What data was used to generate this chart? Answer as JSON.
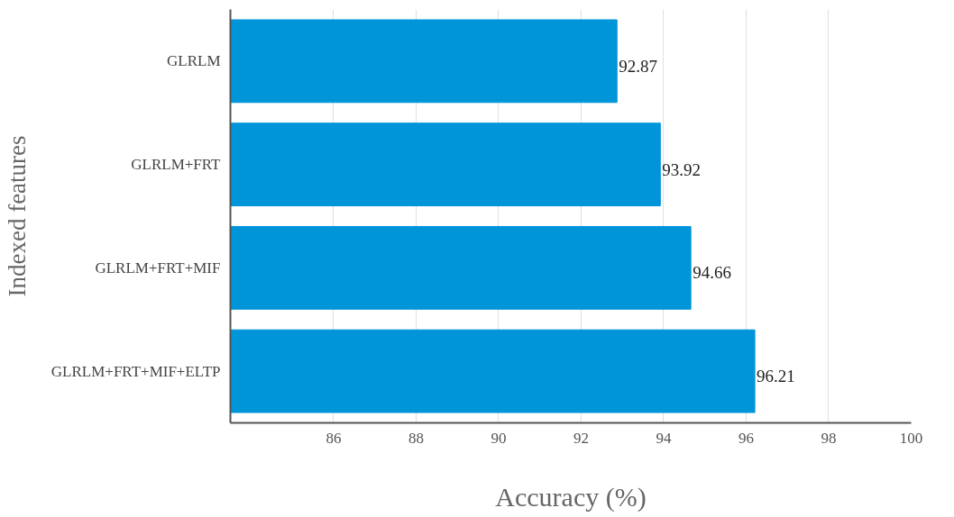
{
  "chart_data": {
    "type": "bar",
    "orientation": "horizontal",
    "xlabel": "Accuracy (%)",
    "ylabel": "Indexed features",
    "categories": [
      "GLRLM",
      "GLRLM+FRT",
      "GLRLM+FRT+MIF",
      "GLRLM+FRT+MIF+ELTP"
    ],
    "values": [
      92.87,
      93.92,
      94.66,
      96.21
    ],
    "color": "#0095d9",
    "xlim": [
      83.5,
      100
    ],
    "xticks": [
      86,
      88,
      90,
      92,
      94,
      96,
      98,
      100
    ],
    "grid": "x",
    "data_labels": true
  }
}
